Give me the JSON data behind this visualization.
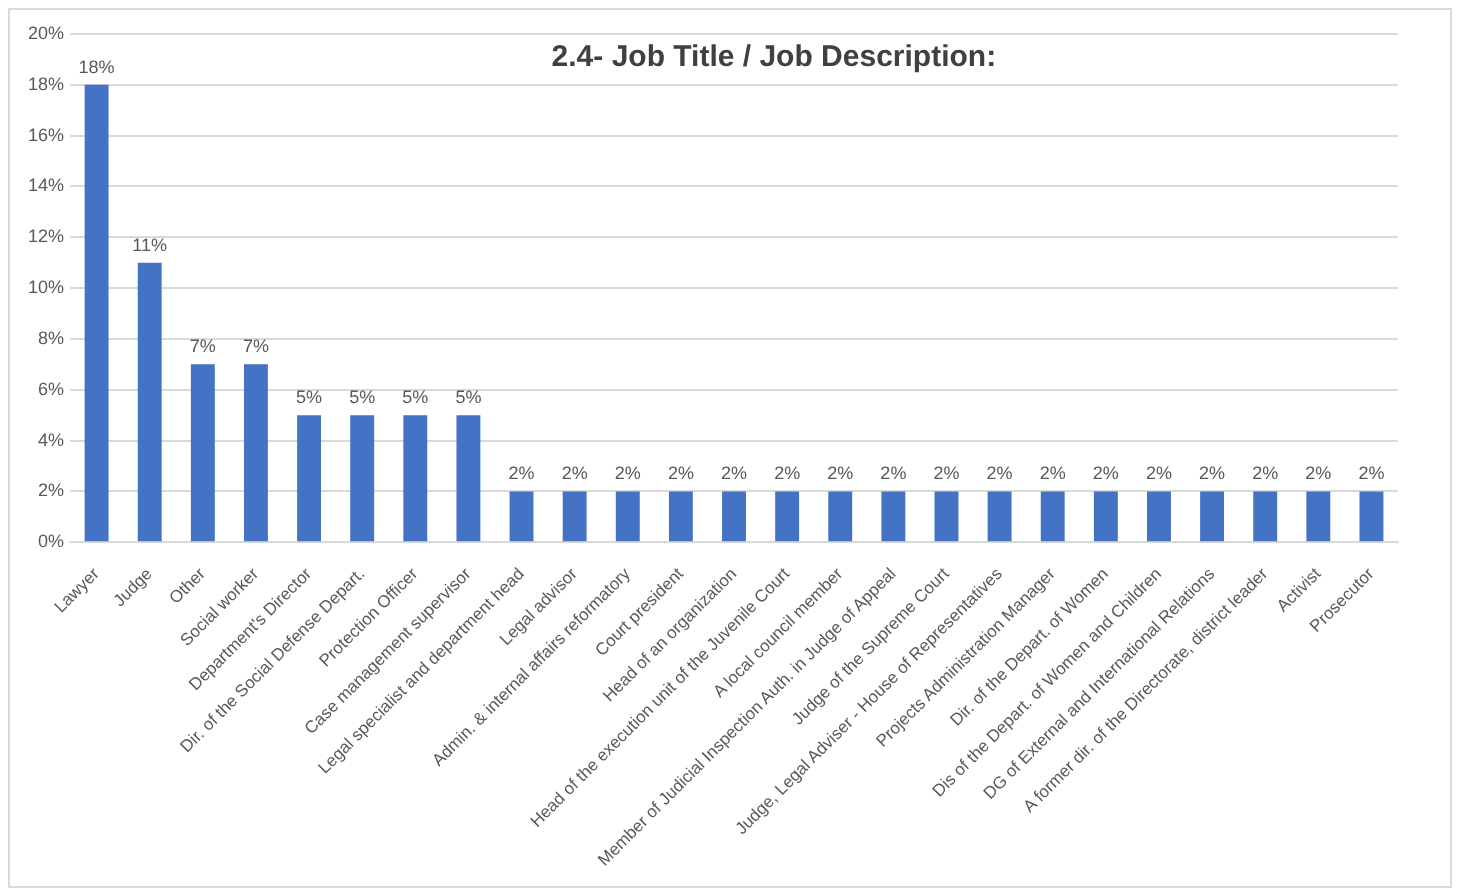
{
  "chart_data": {
    "type": "bar",
    "title": "2.4- Job Title / Job Description:",
    "categories": [
      "Lawyer",
      "Judge",
      "Other",
      "Social worker",
      "Department's Director",
      "Dir. of the Social Defense Depart.",
      "Protection Officer",
      "Case management supervisor",
      "Legal specialist and department head",
      "Legal advisor",
      "Admin. & internal affairs reformatory",
      "Court president",
      "Head of an organization",
      "Head of the execution unit of the Juvenile Court",
      "A local council member",
      "Member of Judicial Inspection Auth. in Judge of Appeal",
      "Judge of the Supreme Court",
      "Judge, Legal Adviser - House of Representatives",
      "Projects Administration Manager",
      "Dir. of the Depart. of Women",
      "Dis of the Depart. of Women and Children",
      "DG of External and International Relations",
      "A former dir. of the Directorate, district leader",
      "Activist",
      "Prosecutor"
    ],
    "values": [
      18,
      11,
      7,
      7,
      5,
      5,
      5,
      5,
      2,
      2,
      2,
      2,
      2,
      2,
      2,
      2,
      2,
      2,
      2,
      2,
      2,
      2,
      2,
      2,
      2
    ],
    "value_labels": [
      "18%",
      "11%",
      "7%",
      "7%",
      "5%",
      "5%",
      "5%",
      "5%",
      "2%",
      "2%",
      "2%",
      "2%",
      "2%",
      "2%",
      "2%",
      "2%",
      "2%",
      "2%",
      "2%",
      "2%",
      "2%",
      "2%",
      "2%",
      "2%",
      "2%"
    ],
    "color": "#4472c4",
    "ylim": [
      0,
      20
    ],
    "yticks": [
      {
        "value": 0,
        "label": "0%"
      },
      {
        "value": 2,
        "label": "2%"
      },
      {
        "value": 4,
        "label": "4%"
      },
      {
        "value": 6,
        "label": "6%"
      },
      {
        "value": 8,
        "label": "8%"
      },
      {
        "value": 10,
        "label": "10%"
      },
      {
        "value": 12,
        "label": "12%"
      },
      {
        "value": 14,
        "label": "14%"
      },
      {
        "value": 16,
        "label": "16%"
      },
      {
        "value": 18,
        "label": "18%"
      },
      {
        "value": 20,
        "label": "20%"
      }
    ],
    "grid": "y",
    "legend": false
  }
}
